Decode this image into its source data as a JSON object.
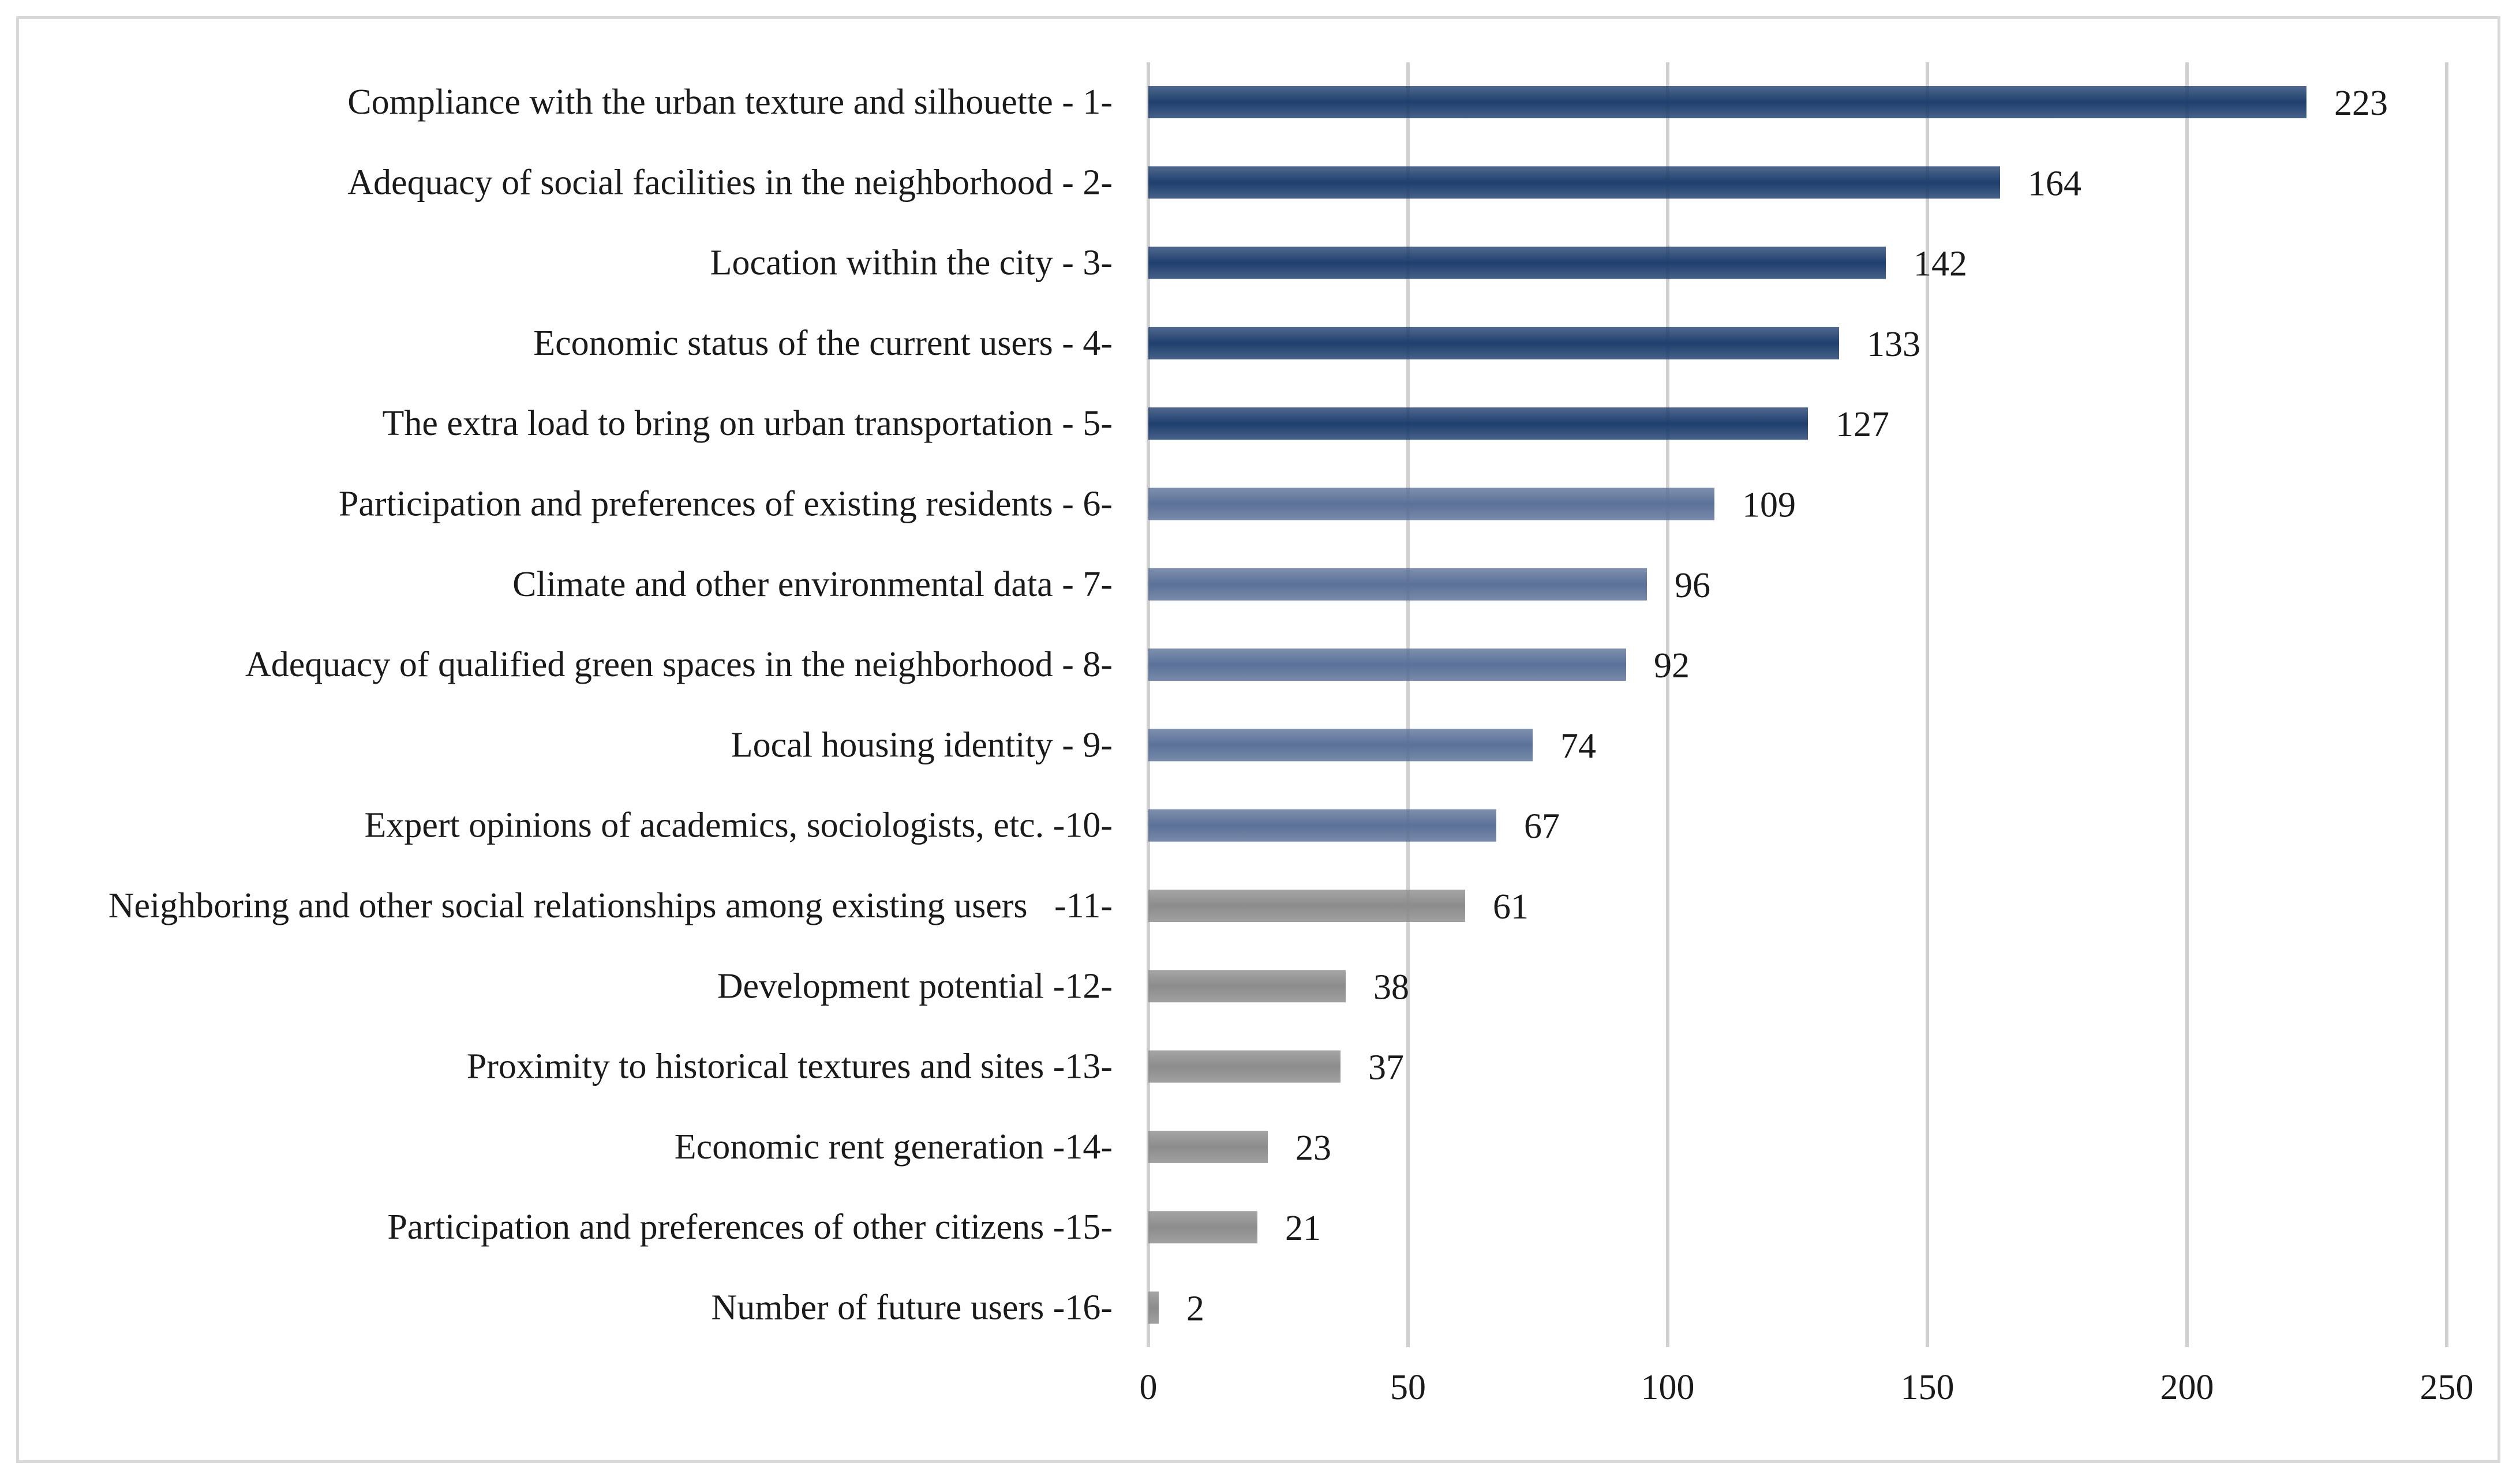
{
  "chart_data": {
    "type": "bar",
    "orientation": "horizontal",
    "title": "",
    "xlabel": "",
    "ylabel": "",
    "xlim": [
      0,
      250
    ],
    "x_ticks": [
      0,
      50,
      100,
      150,
      200,
      250
    ],
    "grid": "vertical",
    "legend": "none",
    "categories": [
      "Compliance with the urban texture and silhouette - 1-",
      "Adequacy of social facilities in the neighborhood - 2-",
      "Location within the city - 3-",
      "Economic status of the current users - 4-",
      "The extra load to bring on urban transportation - 5-",
      "Participation and preferences of existing residents - 6-",
      "Climate and other environmental data - 7-",
      "Adequacy of qualified green spaces in the neighborhood - 8-",
      "Local housing identity - 9-",
      "Expert opinions of academics, sociologists, etc. -10-",
      "Neighboring and other social relationships among existing users   -11-",
      "Development potential -12-",
      "Proximity to historical textures and sites -13-",
      "Economic rent generation -14-",
      "Participation and preferences of other citizens -15-",
      "Number of future users -16-"
    ],
    "values": [
      223,
      164,
      142,
      133,
      127,
      109,
      96,
      92,
      74,
      67,
      61,
      38,
      37,
      23,
      21,
      2
    ],
    "value_labels": [
      "223",
      "164",
      "142",
      "133",
      "127",
      "109",
      "96",
      "92",
      "74",
      "67",
      "61",
      "38",
      "37",
      "23",
      "21",
      "2"
    ],
    "groups": [
      0,
      0,
      0,
      0,
      0,
      1,
      1,
      1,
      1,
      1,
      2,
      2,
      2,
      2,
      2,
      2
    ],
    "group_colors": [
      "#1f3f6e",
      "#5b7198",
      "#8c8c8c"
    ]
  }
}
